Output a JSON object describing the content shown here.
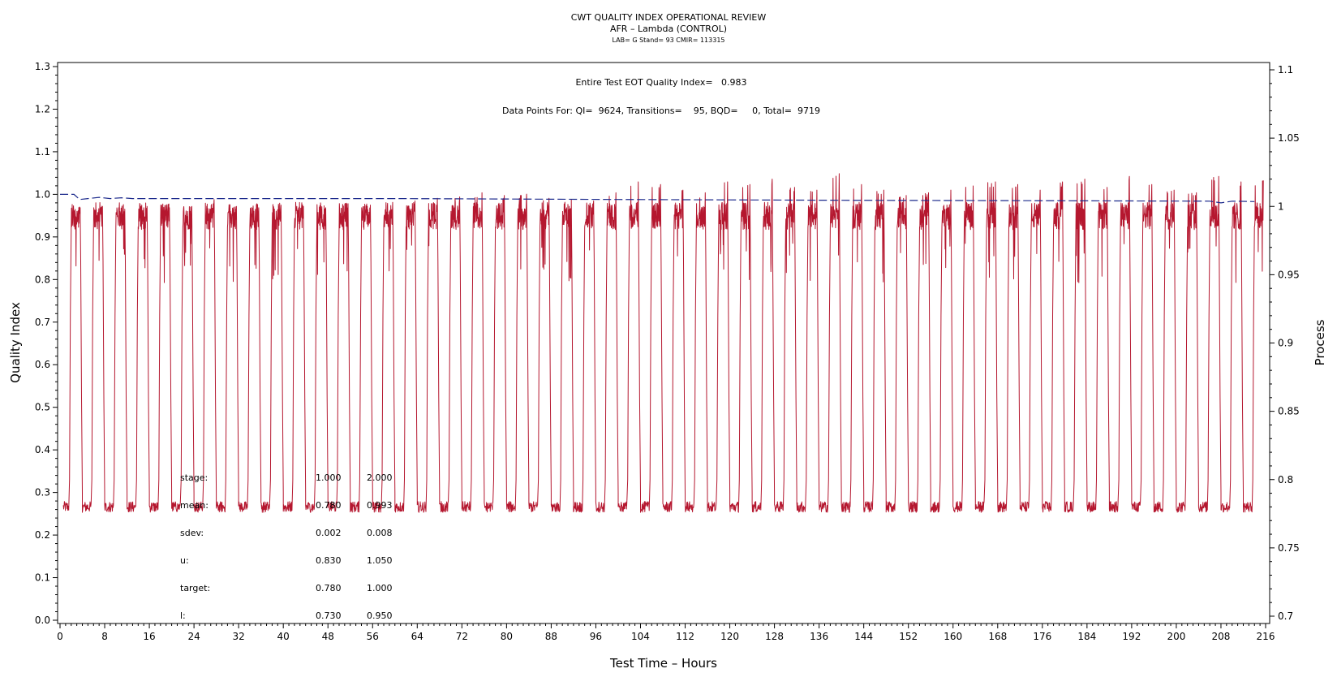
{
  "chart_data": {
    "type": "line",
    "title": "CWT QUALITY INDEX OPERATIONAL REVIEW",
    "subtitle": "AFR – Lambda (CONTROL)",
    "subsubtitle": "LAB= G Stand= 93 CMIR= 113315",
    "xlabel": "Test Time – Hours",
    "ylabel": "Quality Index",
    "y2label": "Process",
    "xlim": [
      0,
      216
    ],
    "ylim": [
      0.0,
      1.3
    ],
    "y2lim": [
      0.7,
      1.1
    ],
    "xticks": [
      "0",
      "8",
      "16",
      "24",
      "32",
      "40",
      "48",
      "56",
      "64",
      "72",
      "80",
      "88",
      "96",
      "104",
      "112",
      "120",
      "128",
      "136",
      "144",
      "152",
      "160",
      "168",
      "176",
      "184",
      "192",
      "200",
      "208",
      "216"
    ],
    "yticks": [
      "0.0",
      "0.1",
      "0.2",
      "0.3",
      "0.4",
      "0.5",
      "0.6",
      "0.7",
      "0.8",
      "0.9",
      "1.0",
      "1.1",
      "1.2",
      "1.3"
    ],
    "y2ticks": [
      "0.7",
      "0.75",
      "0.8",
      "0.85",
      "0.9",
      "0.95",
      "1",
      "1.05",
      "1.1"
    ],
    "annotations": [
      "Entire Test EOT Quality Index=   0.983",
      "Data Points For: QI=  9624, Transitions=    95, BQD=     0, Total=  9719"
    ],
    "stats_table": {
      "headers": [
        "stage:",
        "1.000",
        "2.000"
      ],
      "rows": [
        [
          "mean:",
          "0.780",
          "0.993"
        ],
        [
          "sdev:",
          "0.002",
          "0.008"
        ],
        [
          "u:",
          "0.830",
          "1.050"
        ],
        [
          "target:",
          "0.780",
          "1.000"
        ],
        [
          "l:",
          "0.730",
          "0.950"
        ]
      ]
    },
    "series": [
      {
        "name": "Process (AFR - Lambda)",
        "axis": "right",
        "color": "#b5172f",
        "cycle_period_hours": 4,
        "cycles": 54,
        "low_level": 0.78,
        "high_level": 0.993,
        "high_peaks": [
          0.999,
          1.0,
          0.998,
          1.0,
          0.999,
          1.0,
          1.005,
          1.0,
          0.999,
          1.001,
          1.0,
          0.999,
          1.002,
          1.001,
          1.003,
          1.004,
          1.006,
          1.007,
          1.01,
          1.008,
          1.009,
          1.006,
          1.005,
          1.004,
          1.01,
          1.018,
          1.016,
          1.012,
          1.01,
          1.018,
          1.016,
          1.02,
          1.014,
          1.012,
          1.024,
          1.016,
          1.012,
          1.008,
          1.01,
          1.012,
          1.015,
          1.018,
          1.016,
          1.012,
          1.018,
          1.02,
          1.014,
          1.022,
          1.016,
          1.012,
          1.01,
          1.022,
          1.018,
          1.019
        ]
      },
      {
        "name": "Quality Index",
        "axis": "left",
        "color": "#1c2a8c",
        "style": "dashed",
        "points": [
          [
            0,
            1.0
          ],
          [
            2.5,
            1.0
          ],
          [
            3.5,
            0.988
          ],
          [
            5,
            0.99
          ],
          [
            7,
            0.993
          ],
          [
            9,
            0.99
          ],
          [
            11,
            0.992
          ],
          [
            13,
            0.99
          ],
          [
            30,
            0.99
          ],
          [
            60,
            0.99
          ],
          [
            100,
            0.988
          ],
          [
            140,
            0.986
          ],
          [
            180,
            0.985
          ],
          [
            206,
            0.984
          ],
          [
            208,
            0.98
          ],
          [
            210,
            0.984
          ],
          [
            214,
            0.983
          ]
        ]
      }
    ]
  }
}
